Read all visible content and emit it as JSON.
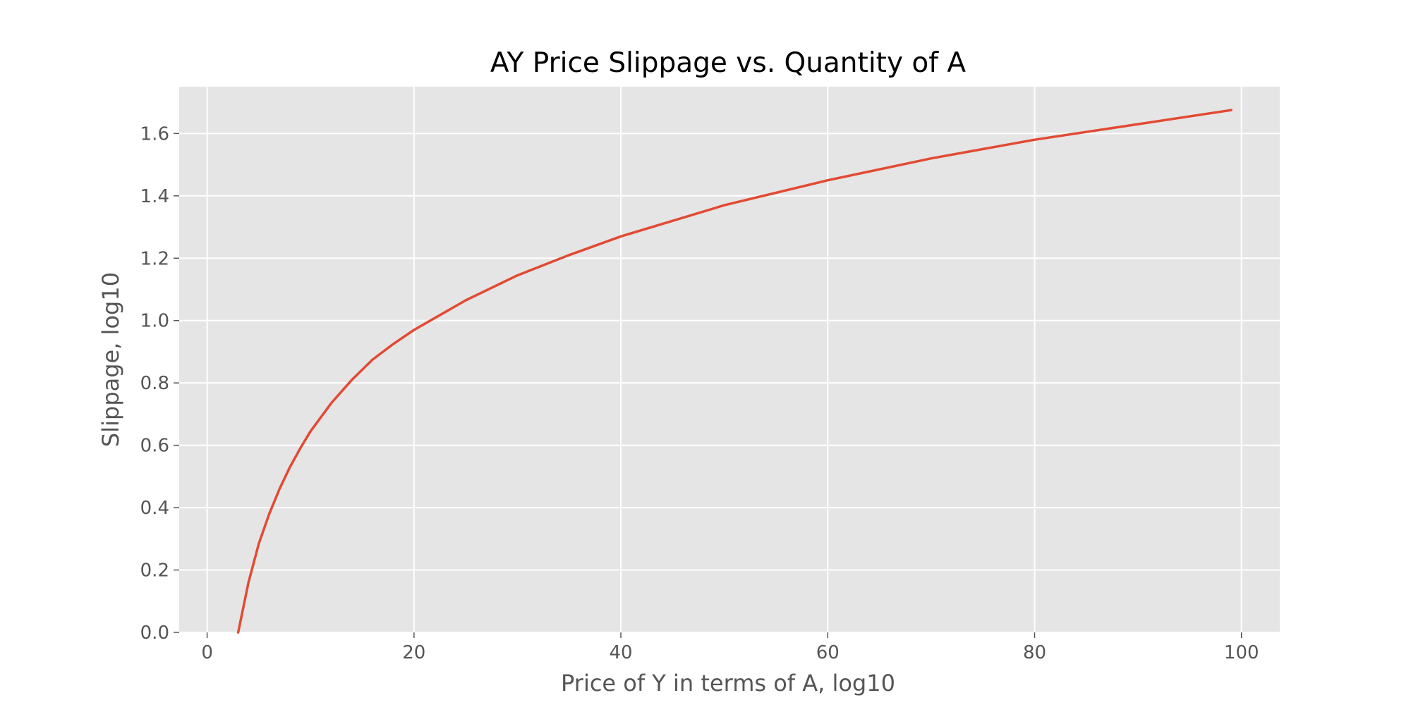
{
  "chart_data": {
    "type": "line",
    "title": "AY Price Slippage vs. Quantity of A",
    "xlabel": "Price of Y in terms of A, log10",
    "ylabel": "Slippage, log10",
    "xlim": [
      -2.7,
      103.7
    ],
    "ylim": [
      0.0,
      1.75
    ],
    "xticks": [
      0,
      20,
      40,
      60,
      80,
      100
    ],
    "yticks": [
      0.0,
      0.2,
      0.4,
      0.6,
      0.8,
      1.0,
      1.2,
      1.4,
      1.6
    ],
    "xtick_labels": [
      "0",
      "20",
      "40",
      "60",
      "80",
      "100"
    ],
    "ytick_labels": [
      "0.0",
      "0.2",
      "0.4",
      "0.6",
      "0.8",
      "1.0",
      "1.2",
      "1.4",
      "1.6"
    ],
    "grid": true,
    "background": "#e5e5e5",
    "grid_color": "#ffffff",
    "line_color": "#e24a33",
    "series": [
      {
        "x": [
          3,
          4,
          5,
          6,
          7,
          8,
          9,
          10,
          12,
          14,
          16,
          18,
          20,
          25,
          30,
          35,
          40,
          50,
          60,
          70,
          80,
          90,
          99
        ],
        "y": [
          0.0,
          0.16,
          0.285,
          0.38,
          0.46,
          0.53,
          0.59,
          0.645,
          0.735,
          0.81,
          0.875,
          0.925,
          0.97,
          1.065,
          1.145,
          1.21,
          1.27,
          1.37,
          1.45,
          1.52,
          1.58,
          1.63,
          1.675
        ]
      }
    ]
  }
}
